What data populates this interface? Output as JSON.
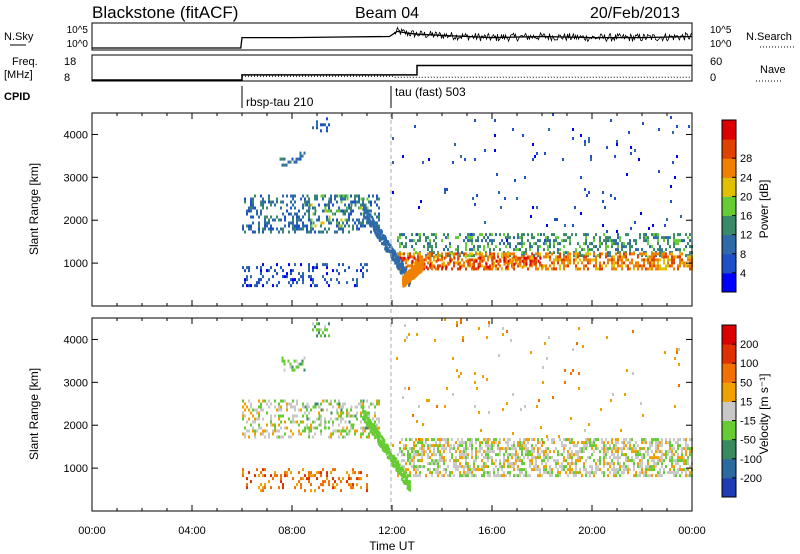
{
  "header": {
    "station": "Blackstone (fitACF)",
    "beam": "Beam 04",
    "date": "20/Feb/2013"
  },
  "chart_data": [
    {
      "type": "line",
      "panel": "noise",
      "left_label": "N.Sky",
      "right_label": "N.Search",
      "left_ticks": [
        "10^5",
        "10^0"
      ],
      "right_ticks": [
        "10^5",
        "10^0"
      ],
      "x_range_hours": [
        0,
        24
      ],
      "data_start_hour": 6.0,
      "series": [
        {
          "name": "N.Sky",
          "style": "solid",
          "x": [
            0,
            5.95,
            6.0,
            6.2,
            8.0,
            10.0,
            11.9,
            12.2,
            12.6,
            13.0,
            14.0,
            16.0,
            18.0,
            20.0,
            22.0,
            24.0
          ],
          "y": [
            0,
            0,
            0.45,
            0.45,
            0.45,
            0.48,
            0.5,
            0.72,
            0.65,
            0.6,
            0.55,
            0.45,
            0.5,
            0.45,
            0.45,
            0.5
          ]
        }
      ]
    },
    {
      "type": "line",
      "panel": "frequency-nave",
      "left_label_top": "Freq.",
      "left_label_bottom": "[MHz]",
      "right_label": "Nave",
      "left_ticks": [
        "18",
        "8"
      ],
      "right_ticks": [
        "60",
        "0"
      ],
      "x_range_hours": [
        0,
        24
      ],
      "series": [
        {
          "name": "Freq.",
          "style": "solid",
          "x": [
            0,
            6.0,
            6.0,
            13.0,
            13.0,
            24.0
          ],
          "y": [
            8,
            8,
            10.2,
            10.2,
            14.3,
            14.3
          ]
        },
        {
          "name": "Nave",
          "style": "dotted",
          "x": [
            6.0,
            12.0,
            12.1,
            24.0
          ],
          "y": [
            10,
            10,
            7,
            7
          ]
        }
      ]
    },
    {
      "type": "annotation",
      "panel": "cpid",
      "label": "CPID",
      "programs": [
        {
          "label": "rbsp-tau 210",
          "start_hour": 6.0
        },
        {
          "label": "tau (fast) 503",
          "start_hour": 12.0
        }
      ]
    },
    {
      "type": "heatmap",
      "panel": "power",
      "ylabel": "Slant Range [km]",
      "ylim": [
        0,
        4500
      ],
      "yticks": [
        1000,
        2000,
        3000,
        4000
      ],
      "colorbar_label": "Power [dB]",
      "colorbar_ticks": [
        4,
        8,
        12,
        16,
        20,
        24,
        28
      ],
      "colorbar_colors": [
        "#0000ff",
        "#1e50c8",
        "#2e6aa8",
        "#3a8a6a",
        "#66cc33",
        "#e0c000",
        "#f08000",
        "#e04000",
        "#dd0000"
      ],
      "regions": [
        {
          "t0": 6.0,
          "t1": 11.5,
          "r0": 1700,
          "r1": 2600,
          "level": 2,
          "density": 0.35
        },
        {
          "t0": 8.5,
          "t1": 11.0,
          "r0": 1900,
          "r1": 2600,
          "level": 4,
          "density": 0.12
        },
        {
          "t0": 6.0,
          "t1": 11.0,
          "r0": 500,
          "r1": 1000,
          "level": 1,
          "density": 0.22
        },
        {
          "t0": 7.5,
          "t1": 8.5,
          "r0": 3300,
          "r1": 3600,
          "level": 2,
          "density": 0.3
        },
        {
          "t0": 8.8,
          "t1": 9.5,
          "r0": 4100,
          "r1": 4400,
          "level": 1,
          "density": 0.3
        },
        {
          "t0": 12.2,
          "t1": 24.0,
          "r0": 1200,
          "r1": 1700,
          "level": 3,
          "density": 0.35
        },
        {
          "t0": 12.2,
          "t1": 24.0,
          "r0": 850,
          "r1": 1250,
          "level": 6,
          "density": 0.55
        },
        {
          "t0": 12.3,
          "t1": 18.0,
          "r0": 900,
          "r1": 1150,
          "level": 7,
          "density": 0.3
        },
        {
          "t0": 12.0,
          "t1": 24.0,
          "r0": 1500,
          "r1": 4500,
          "level": 1,
          "density": 0.015
        }
      ],
      "traces": [
        {
          "t0": 10.8,
          "r0": 2300,
          "t1": 12.7,
          "r1": 600,
          "level": 2,
          "width": 280
        },
        {
          "t0": 12.4,
          "r0": 600,
          "t1": 13.2,
          "r1": 1000,
          "level": 6,
          "width": 250
        }
      ]
    },
    {
      "type": "heatmap",
      "panel": "velocity",
      "xlabel": "Time UT",
      "ylabel": "Slant Range [km]",
      "ylim": [
        0,
        4500
      ],
      "yticks": [
        1000,
        2000,
        3000,
        4000
      ],
      "xticks": [
        "00:00",
        "04:00",
        "08:00",
        "12:00",
        "16:00",
        "20:00",
        "00:00"
      ],
      "colorbar_label": "Velocity [m s⁻¹]",
      "colorbar_ticks": [
        200,
        100,
        50,
        15,
        -15,
        -50,
        -100,
        -200
      ],
      "colorbar_colors": [
        "#1e3cb4",
        "#2a6aa0",
        "#3a8a60",
        "#66cc33",
        "#c8c8c8",
        "#f0a000",
        "#f07000",
        "#e03000",
        "#dd0000"
      ],
      "regions": [
        {
          "t0": 6.0,
          "t1": 11.5,
          "r0": 1700,
          "r1": 2600,
          "level": 4,
          "density": 0.32
        },
        {
          "t0": 8.5,
          "t1": 11.0,
          "r0": 1900,
          "r1": 2600,
          "level": 3,
          "density": 0.15
        },
        {
          "t0": 6.0,
          "t1": 11.0,
          "r0": 500,
          "r1": 1000,
          "level": 6,
          "density": 0.2
        },
        {
          "t0": 7.5,
          "t1": 8.5,
          "r0": 3300,
          "r1": 3600,
          "level": 3,
          "density": 0.3
        },
        {
          "t0": 8.8,
          "t1": 9.5,
          "r0": 4100,
          "r1": 4400,
          "level": 3,
          "density": 0.3
        },
        {
          "t0": 12.2,
          "t1": 24.0,
          "r0": 850,
          "r1": 1700,
          "level": 4,
          "density": 0.55
        },
        {
          "t0": 12.0,
          "t1": 24.0,
          "r0": 1500,
          "r1": 4500,
          "level": 5,
          "density": 0.015
        }
      ],
      "traces": [
        {
          "t0": 10.8,
          "r0": 2300,
          "t1": 12.7,
          "r1": 600,
          "level": 3,
          "width": 280
        }
      ]
    }
  ]
}
